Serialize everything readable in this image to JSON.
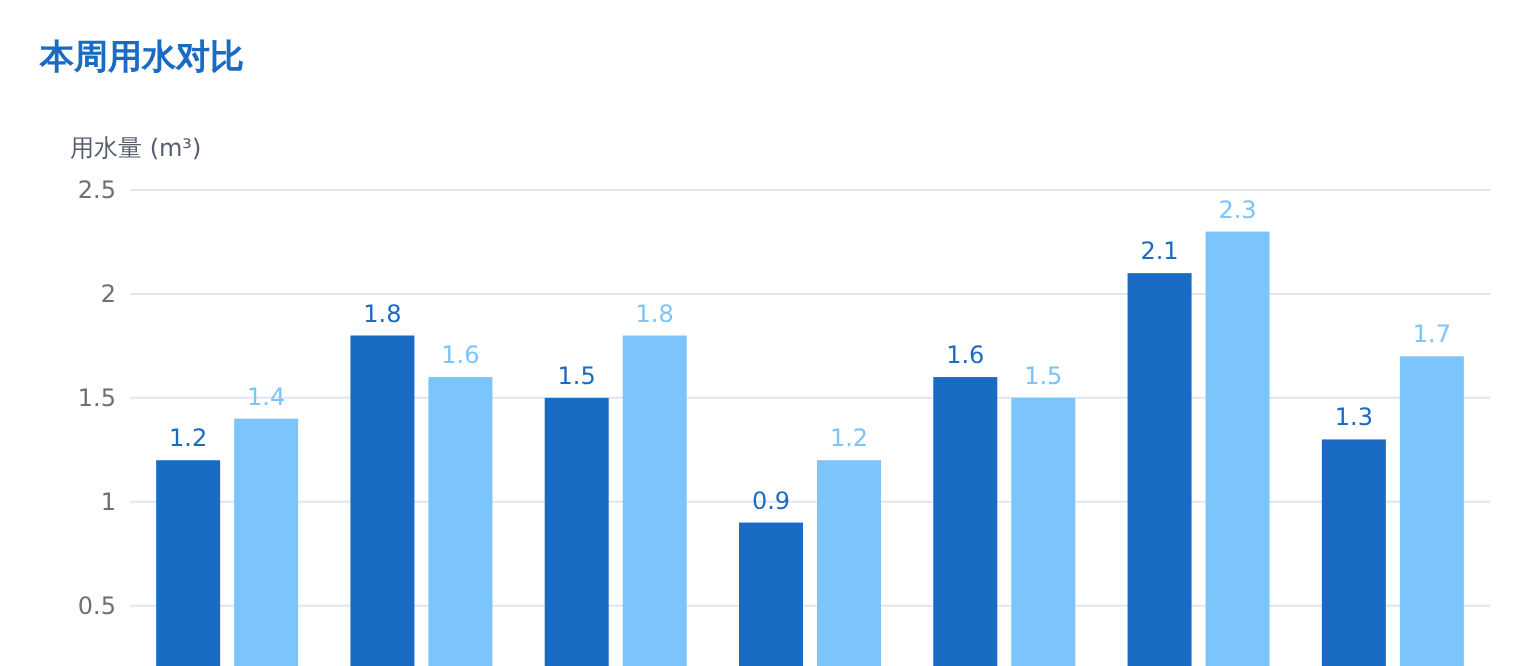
{
  "chart_data": {
    "type": "bar",
    "title": "本周用水对比",
    "ylabel": "用水量 (m³)",
    "categories": [
      null,
      null,
      null,
      null,
      null,
      null,
      null
    ],
    "series": [
      {
        "color": "#1a6bc4",
        "values": [
          1.2,
          1.8,
          1.5,
          0.9,
          1.6,
          2.1,
          1.3
        ]
      },
      {
        "color": "#7cc4fc",
        "values": [
          1.4,
          1.6,
          1.8,
          1.2,
          1.5,
          2.3,
          1.7
        ]
      }
    ],
    "ylim": [
      0.21,
      2.5
    ],
    "yticks": [
      0.5,
      1,
      1.5,
      2,
      2.5
    ],
    "grid": "y",
    "data_labels": true
  }
}
